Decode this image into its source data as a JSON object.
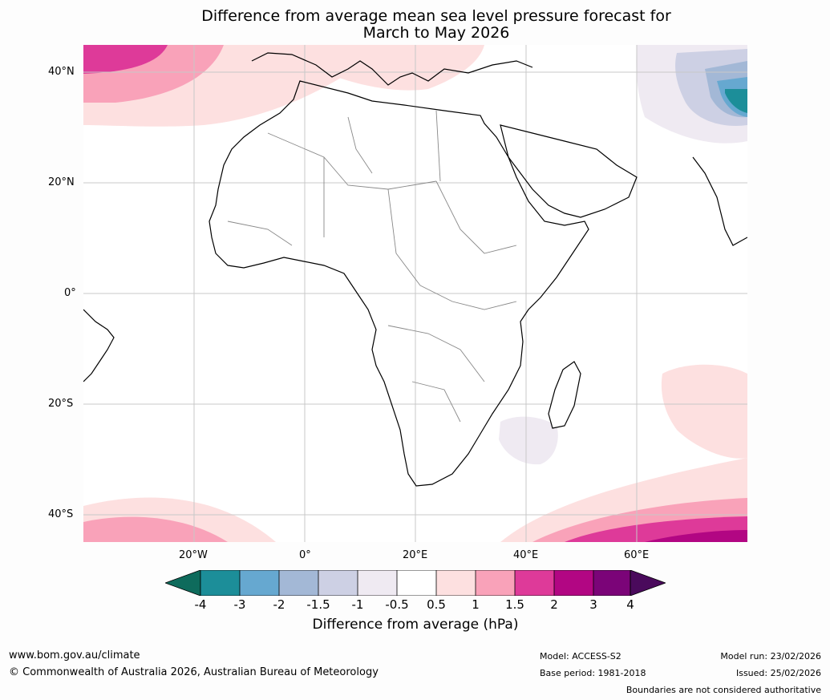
{
  "title": {
    "line1": "Difference from average mean sea level pressure forecast for",
    "line2": "March to May 2026"
  },
  "axes": {
    "lat_labels": [
      "40°N",
      "20°N",
      "0°",
      "20°S",
      "40°S"
    ],
    "lon_labels": [
      "20°W",
      "0°",
      "20°E",
      "40°E",
      "60°E"
    ]
  },
  "legend": {
    "title": "Difference from average (hPa)",
    "ticks": [
      "-4",
      "-3",
      "-2",
      "-1.5",
      "-1",
      "-0.5",
      "0.5",
      "1",
      "1.5",
      "2",
      "3",
      "4"
    ],
    "colors": {
      "lt_-4": "#0e6b5c",
      "-4_-3": "#1c8e99",
      "-3_-2": "#66a8d0",
      "-2_-1.5": "#a3b8d6",
      "-1.5_-1": "#cdd0e4",
      "-1_-0.5": "#efeaf2",
      "-0.5_0.5": "#ffffff",
      "0.5_1": "#fde0e0",
      "1_1.5": "#f9a2b9",
      "1.5_2": "#de3a99",
      "2_3": "#b20683",
      "3_4": "#7b0478",
      "gt_4": "#4a0a5c"
    }
  },
  "footer": {
    "website": "www.bom.gov.au/climate",
    "copyright": "© Commonwealth of Australia 2026, Australian Bureau of Meteorology",
    "model": "Model: ACCESS-S2",
    "base_period": "Base period: 1981-2018",
    "model_run": "Model run: 23/02/2026",
    "issued": "Issued: 25/02/2026",
    "disclaimer": "Boundaries are not considered authoritative"
  }
}
